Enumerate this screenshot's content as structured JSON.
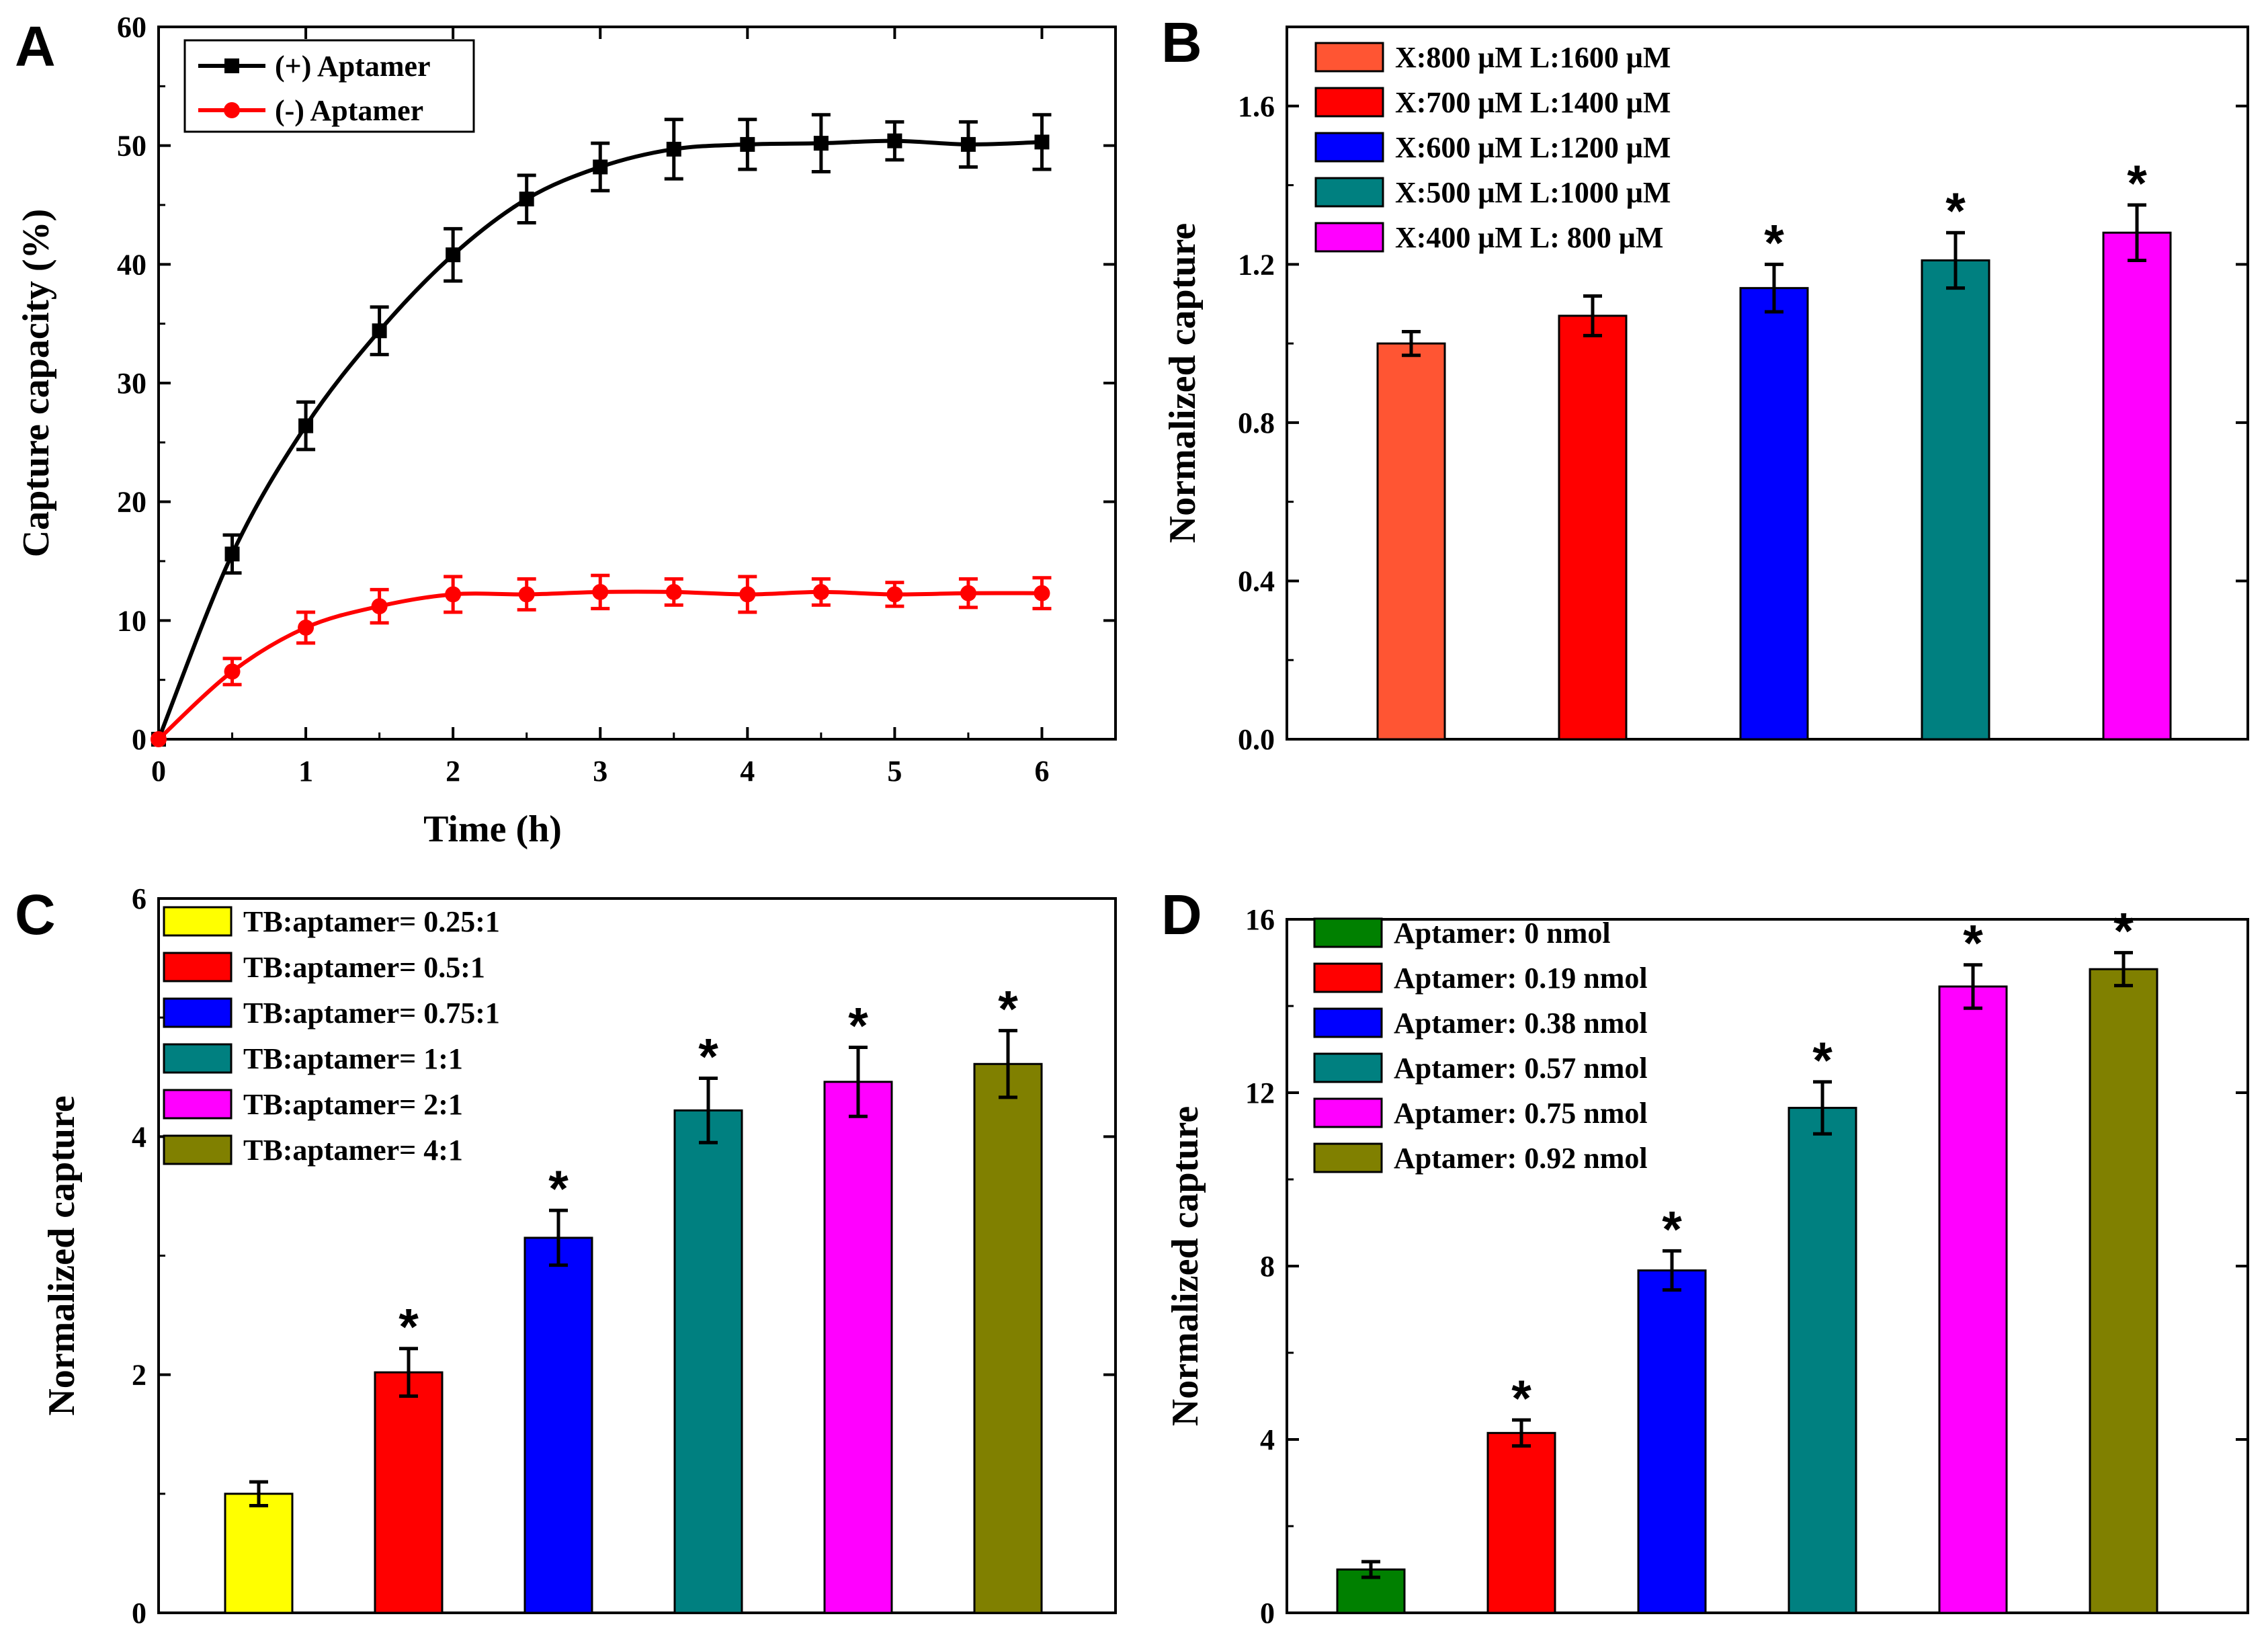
{
  "chart_data": [
    {
      "panel": "A",
      "type": "line",
      "xlabel": "Time (h)",
      "ylabel": "Capture capacity (%)",
      "xlim": [
        0,
        6.5
      ],
      "ylim": [
        0,
        60
      ],
      "xticks": [
        "0",
        "1",
        "2",
        "3",
        "4",
        "5",
        "6"
      ],
      "yticks": [
        "0",
        "10",
        "20",
        "30",
        "40",
        "50",
        "60"
      ],
      "x": [
        0,
        0.5,
        1,
        1.5,
        2,
        2.5,
        3,
        3.5,
        4,
        4.5,
        5,
        5.5,
        6
      ],
      "series": [
        {
          "name": "(+) Aptamer",
          "color": "#000000",
          "marker": "square",
          "values": [
            0,
            15.6,
            26.4,
            34.4,
            40.8,
            45.5,
            48.2,
            49.7,
            50.1,
            50.2,
            50.4,
            50.1,
            50.3
          ],
          "errors": [
            0,
            1.6,
            2.0,
            2.0,
            2.2,
            2.0,
            2.0,
            2.5,
            2.1,
            2.4,
            1.6,
            1.9,
            2.3
          ]
        },
        {
          "name": "(-)  Aptamer",
          "color": "#ff0000",
          "marker": "circle",
          "values": [
            0,
            5.7,
            9.4,
            11.2,
            12.2,
            12.2,
            12.4,
            12.4,
            12.2,
            12.4,
            12.2,
            12.3,
            12.3
          ],
          "errors": [
            0,
            1.1,
            1.3,
            1.4,
            1.5,
            1.3,
            1.4,
            1.1,
            1.5,
            1.1,
            1.0,
            1.2,
            1.3
          ]
        }
      ]
    },
    {
      "panel": "B",
      "type": "bar",
      "xlabel": "",
      "ylabel": "Normalized capture",
      "ylim": [
        0,
        1.8
      ],
      "yticks": [
        "0.0",
        "0.4",
        "0.8",
        "1.2",
        "1.6"
      ],
      "tick_values": [
        0,
        0.4,
        0.8,
        1.2,
        1.6
      ],
      "categories": [
        "X:800 μM  L:1600 μM",
        "X:700 μM  L:1400 μM",
        "X:600 μM  L:1200 μM",
        "X:500 μM  L:1000 μM",
        "X:400 μM  L:  800 μM"
      ],
      "values": [
        1.0,
        1.07,
        1.14,
        1.21,
        1.28
      ],
      "errors": [
        0.03,
        0.05,
        0.06,
        0.07,
        0.07
      ],
      "colors": [
        "#ff5533",
        "#ff0000",
        "#0000ff",
        "#008080",
        "#ff00ff"
      ],
      "significant": [
        false,
        false,
        true,
        true,
        true
      ],
      "legend": "top-left"
    },
    {
      "panel": "C",
      "type": "bar",
      "xlabel": "",
      "ylabel": "Normalized capture",
      "ylim": [
        0,
        6
      ],
      "yticks": [
        "0",
        "2",
        "4",
        "6"
      ],
      "tick_values": [
        0,
        2,
        4,
        6
      ],
      "categories": [
        "TB:aptamer= 0.25:1",
        "TB:aptamer=   0.5:1",
        "TB:aptamer= 0.75:1",
        "TB:aptamer=      1:1",
        "TB:aptamer=      2:1",
        "TB:aptamer=      4:1"
      ],
      "values": [
        1.0,
        2.02,
        3.15,
        4.22,
        4.46,
        4.61
      ],
      "errors": [
        0.1,
        0.2,
        0.23,
        0.27,
        0.29,
        0.28
      ],
      "colors": [
        "#ffff00",
        "#ff0000",
        "#0000ff",
        "#008080",
        "#ff00ff",
        "#808000"
      ],
      "significant": [
        false,
        true,
        true,
        true,
        true,
        true
      ],
      "legend": "top-left"
    },
    {
      "panel": "D",
      "type": "bar",
      "xlabel": "",
      "ylabel": "Normalized capture",
      "ylim": [
        0,
        16
      ],
      "yticks": [
        "0",
        "4",
        "8",
        "12",
        "16"
      ],
      "tick_values": [
        0,
        4,
        8,
        12,
        16
      ],
      "categories": [
        "Aptamer:      0 nmol",
        "Aptamer:  0.19 nmol",
        "Aptamer:  0.38 nmol",
        "Aptamer:  0.57 nmol",
        "Aptamer:  0.75 nmol",
        "Aptamer:  0.92 nmol"
      ],
      "values": [
        1.0,
        4.15,
        7.9,
        11.65,
        14.45,
        14.85
      ],
      "errors": [
        0.18,
        0.3,
        0.45,
        0.6,
        0.5,
        0.38
      ],
      "colors": [
        "#008000",
        "#ff0000",
        "#0000ff",
        "#008080",
        "#ff00ff",
        "#808000"
      ],
      "significant": [
        false,
        true,
        true,
        true,
        true,
        true
      ],
      "legend": "top-left"
    }
  ]
}
